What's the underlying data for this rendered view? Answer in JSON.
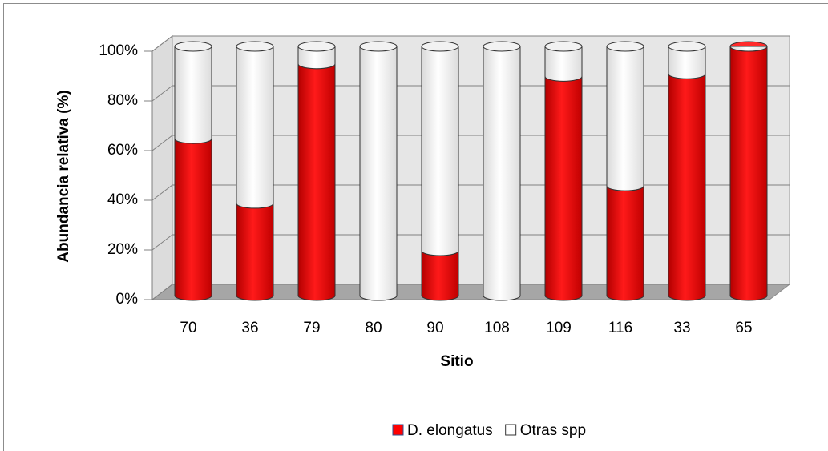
{
  "chart_data": {
    "type": "bar3d_stacked",
    "x_label": "Sitio",
    "y_label": "Abundancia relativa (%)",
    "categories": [
      "70",
      "36",
      "79",
      "80",
      "90",
      "108",
      "109",
      "116",
      "33",
      "65"
    ],
    "series": [
      {
        "name": "D. elongatus",
        "color": "#ff0000",
        "values": [
          63,
          37,
          93,
          0,
          18,
          0,
          88,
          44,
          89,
          100
        ]
      },
      {
        "name": "Otras spp",
        "color": "#ffffff",
        "values": [
          37,
          63,
          7,
          100,
          82,
          100,
          12,
          56,
          11,
          0
        ]
      }
    ],
    "ylim": [
      0,
      100
    ],
    "yticks": [
      {
        "value": 0,
        "label": "0%"
      },
      {
        "value": 20,
        "label": "20%"
      },
      {
        "value": 40,
        "label": "40%"
      },
      {
        "value": 60,
        "label": "60%"
      },
      {
        "value": 80,
        "label": "80%"
      },
      {
        "value": 100,
        "label": "100%"
      }
    ],
    "grid": true,
    "legend": "bottom"
  }
}
